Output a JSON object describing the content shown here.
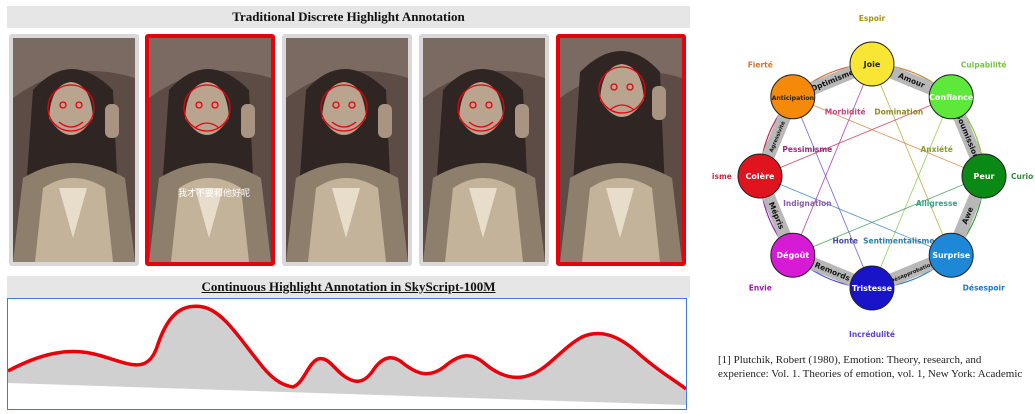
{
  "top_panel": {
    "title": "Traditional Discrete Highlight Annotation"
  },
  "frames": [
    {
      "highlighted": false,
      "expression": "smile",
      "subtitle": ""
    },
    {
      "highlighted": true,
      "expression": "sad",
      "subtitle": "我才不要和他好呢"
    },
    {
      "highlighted": false,
      "expression": "smile",
      "subtitle": ""
    },
    {
      "highlighted": false,
      "expression": "smile",
      "subtitle": ""
    },
    {
      "highlighted": true,
      "expression": "sad",
      "subtitle": ""
    }
  ],
  "bottom_panel": {
    "title": "Continuous Highlight Annotation in SkyScript-100M"
  },
  "emotion_wheel": {
    "primary": [
      {
        "label": "Joie",
        "color": "#f9e534",
        "text_color": "#222222"
      },
      {
        "label": "Confiance",
        "color": "#5ee83c",
        "text_color": "#ffffff"
      },
      {
        "label": "Peur",
        "color": "#0a8a14",
        "text_color": "#ffffff"
      },
      {
        "label": "Surprise",
        "color": "#1e88d8",
        "text_color": "#ffffff"
      },
      {
        "label": "Tristesse",
        "color": "#1a14c8",
        "text_color": "#ffffff"
      },
      {
        "label": "Dégoût",
        "color": "#d61ad6",
        "text_color": "#ffffff"
      },
      {
        "label": "Colère",
        "color": "#e0141e",
        "text_color": "#ffffff"
      },
      {
        "label": "Anticipation",
        "color": "#f58a0a",
        "text_color": "#222222"
      }
    ],
    "dyads": [
      "Amour",
      "Soumission",
      "Awe",
      "Désapprobation",
      "Remords",
      "Mépris",
      "Agressivité",
      "Optimisme"
    ],
    "outer": [
      {
        "label": "Espoir",
        "color": "#a39114"
      },
      {
        "label": "Culpabilité",
        "color": "#76c442"
      },
      {
        "label": "Curiosité",
        "color": "#2f8f3a"
      },
      {
        "label": "Désespoir",
        "color": "#2176c4"
      },
      {
        "label": "Incrédulité",
        "color": "#5b3fd0"
      },
      {
        "label": "Envie",
        "color": "#9c1ab0"
      },
      {
        "label": "Cynisme",
        "color": "#d1273a"
      },
      {
        "label": "Fierté",
        "color": "#d6742a"
      }
    ],
    "inner": [
      {
        "label": "Domination",
        "color": "#8f8a24"
      },
      {
        "label": "Anxiété",
        "color": "#8a9a30"
      },
      {
        "label": "Alligresse",
        "color": "#3aa088"
      },
      {
        "label": "Sentimentalisme",
        "color": "#2c7ea8"
      },
      {
        "label": "Honte",
        "color": "#4848a0"
      },
      {
        "label": "Indignation",
        "color": "#8a5aa8"
      },
      {
        "label": "Pessimisme",
        "color": "#9a2a7a"
      },
      {
        "label": "Morbidité",
        "color": "#c04a7a"
      }
    ]
  },
  "reference": "[1] Plutchik, Robert (1980), Emotion: Theory, research, and experience: Vol. 1. Theories of emotion, vol. 1, New York: Academic"
}
